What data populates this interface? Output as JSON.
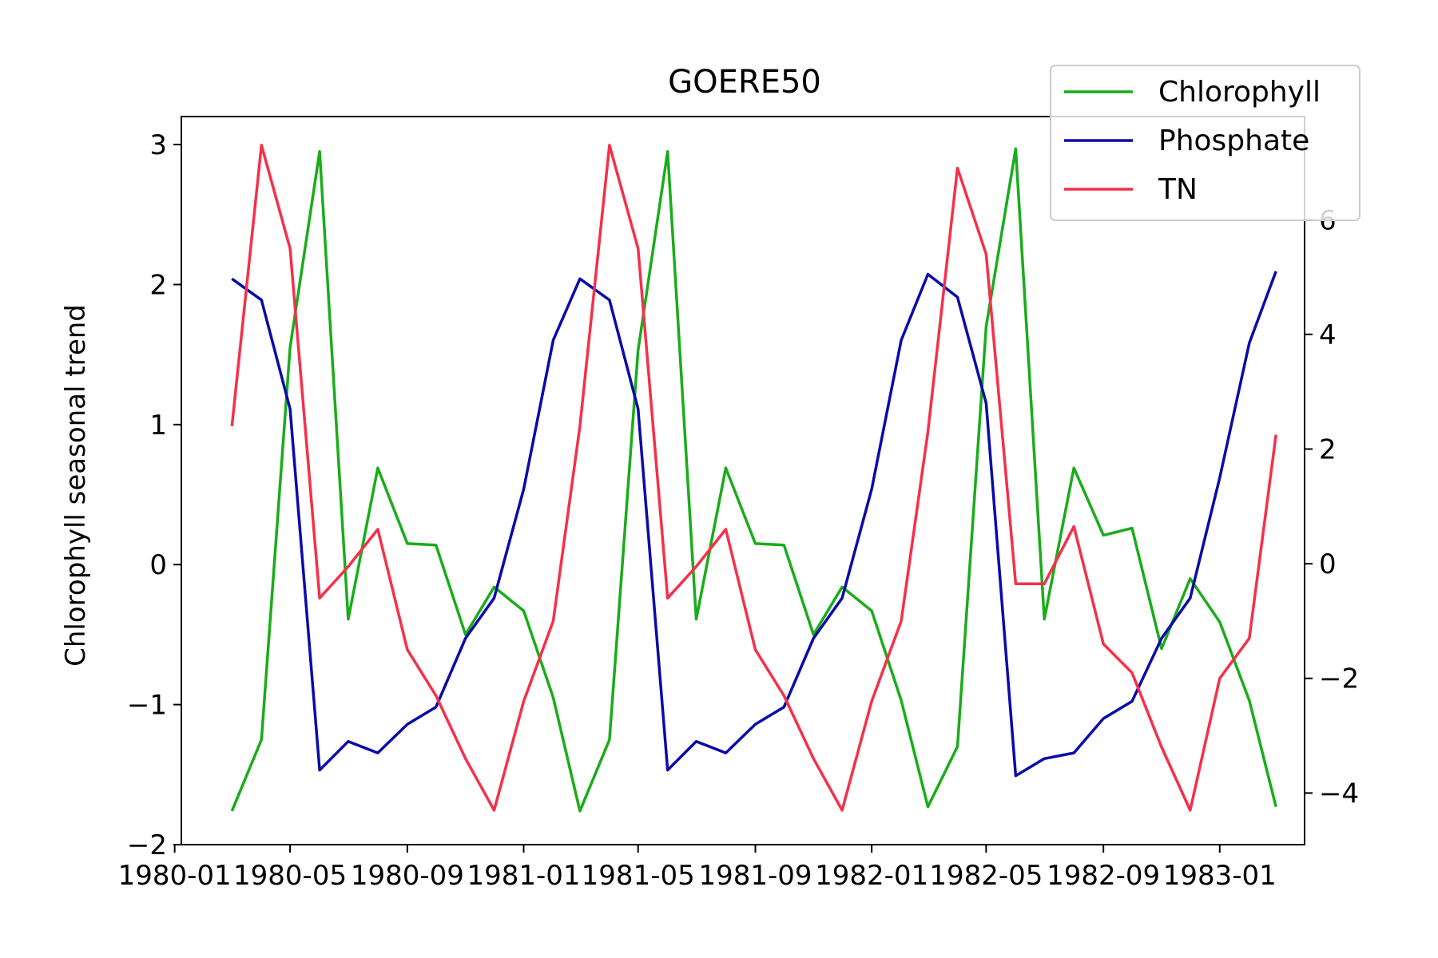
{
  "chart_data": {
    "type": "line",
    "title": "GOERE50",
    "ylabel": "Chlorophyll seasonal trend",
    "y2label": "",
    "xlabel": "",
    "x": [
      "1980-03",
      "1980-04",
      "1980-05",
      "1980-06",
      "1980-07",
      "1980-08",
      "1980-09",
      "1980-10",
      "1980-11",
      "1980-12",
      "1981-01",
      "1981-02",
      "1981-03",
      "1981-04",
      "1981-05",
      "1981-06",
      "1981-07",
      "1981-08",
      "1981-09",
      "1981-10",
      "1981-11",
      "1981-12",
      "1982-01",
      "1982-02",
      "1982-03",
      "1982-04",
      "1982-05",
      "1982-06",
      "1982-07",
      "1982-08",
      "1982-09",
      "1982-10",
      "1982-11",
      "1982-12",
      "1983-01",
      "1983-02",
      "1983-03"
    ],
    "xlim": [
      "1980-01-08",
      "1983-03-31"
    ],
    "xticks": [
      "1980-01",
      "1980-05",
      "1980-09",
      "1981-01",
      "1981-05",
      "1981-09",
      "1982-01",
      "1982-05",
      "1982-09",
      "1983-01"
    ],
    "ylim_left": [
      -2.0,
      3.2
    ],
    "yticks_left": [
      "3",
      "2",
      "1",
      "0",
      "−1",
      "−2"
    ],
    "ylim_right": [
      -4.9,
      7.8
    ],
    "yticks_right": [
      "6",
      "4",
      "2",
      "0",
      "−2",
      "−4"
    ],
    "legend_position": "top-right",
    "grid": false,
    "series": [
      {
        "name": "Chlorophyll",
        "axis": "left",
        "color": "#1aac1a",
        "values": [
          -1.76,
          -1.25,
          1.55,
          2.95,
          -0.39,
          0.69,
          0.15,
          0.14,
          -0.5,
          -0.16,
          -0.33,
          -0.95,
          -1.76,
          -1.25,
          1.53,
          2.95,
          -0.39,
          0.69,
          0.15,
          0.14,
          -0.5,
          -0.16,
          -0.33,
          -0.97,
          -1.73,
          -1.3,
          1.7,
          2.97,
          -0.39,
          0.69,
          0.21,
          0.26,
          -0.6,
          -0.1,
          -0.41,
          -0.97,
          -1.73
        ]
      },
      {
        "name": "Phosphate",
        "axis": "right",
        "color": "#0a0aaa",
        "values": [
          4.97,
          4.6,
          2.7,
          -3.6,
          -3.1,
          -3.3,
          -2.8,
          -2.5,
          -1.3,
          -0.6,
          1.3,
          3.9,
          4.97,
          4.6,
          2.7,
          -3.6,
          -3.1,
          -3.3,
          -2.8,
          -2.5,
          -1.3,
          -0.6,
          1.3,
          3.9,
          5.05,
          4.65,
          2.8,
          -3.7,
          -3.4,
          -3.3,
          -2.7,
          -2.4,
          -1.3,
          -0.6,
          1.5,
          3.85,
          5.1
        ]
      },
      {
        "name": "TN",
        "axis": "right",
        "color": "#f5304a",
        "values": [
          2.4,
          7.3,
          5.5,
          -0.6,
          -0.05,
          0.6,
          -1.5,
          -2.3,
          -3.4,
          -4.3,
          -2.4,
          -1.0,
          2.4,
          7.3,
          5.5,
          -0.6,
          -0.05,
          0.6,
          -1.5,
          -2.3,
          -3.4,
          -4.3,
          -2.4,
          -1.0,
          2.3,
          6.9,
          5.4,
          -0.35,
          -0.35,
          0.65,
          -1.4,
          -1.9,
          -3.2,
          -4.3,
          -2.0,
          -1.3,
          2.25
        ]
      }
    ]
  }
}
